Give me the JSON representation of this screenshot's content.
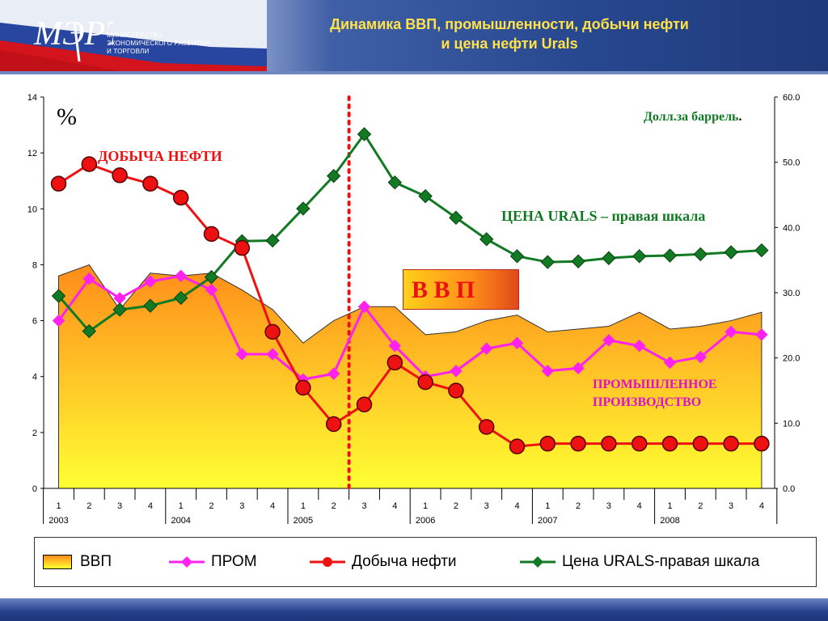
{
  "header": {
    "title_line1": "Динамика ВВП, промышленности, добычи нефти",
    "title_line2": "и цена нефти Urals",
    "logo_text": "МЭРТ",
    "ministry_line1": "МИНИСТЕРСТВО",
    "ministry_line2": "ЭКОНОМИЧЕСКОГО РАЗВИТИЯ",
    "ministry_line3": "И ТОРГОВЛИ"
  },
  "annotations": {
    "percent": "%",
    "right_unit": "Долл.за баррель",
    "right_unit_dot": ".",
    "oil": "ДОБЫЧА НЕФТИ",
    "urals": "ЦЕНА URALS – правая шкала",
    "gdp_box": "В В П",
    "prom_line1": "ПРОМЫШЛЕННОЕ",
    "prom_line2": "ПРОИЗВОДСТВО"
  },
  "legend": {
    "gdp": "ВВП",
    "prom": "ПРОМ",
    "oil": "Добыча нефти",
    "urals": "Цена URALS-правая шкала"
  },
  "colors": {
    "gdp_fill_top": "#ff8c1a",
    "gdp_fill_bottom": "#ffff33",
    "prom": "#ff22ee",
    "oil": "#ee1111",
    "urals": "#117a22",
    "divider": "#ee1111",
    "title": "#ffe14a"
  },
  "chart_data": {
    "type": "line",
    "quarters": [
      "1",
      "2",
      "3",
      "4",
      "1",
      "2",
      "3",
      "4",
      "1",
      "2",
      "3",
      "4",
      "1",
      "2",
      "3",
      "4",
      "1",
      "2",
      "3",
      "4",
      "1",
      "2",
      "3",
      "4"
    ],
    "years": [
      "2003",
      "2004",
      "2005",
      "2006",
      "2007",
      "2008"
    ],
    "ylim_left": [
      0,
      14
    ],
    "yticks_left": [
      "0",
      "2",
      "4",
      "6",
      "8",
      "10",
      "12",
      "14"
    ],
    "ylim_right": [
      0,
      60
    ],
    "yticks_right": [
      "0.0",
      "10.0",
      "20.0",
      "30.0",
      "40.0",
      "50.0",
      "60.0"
    ],
    "divider_after_quarter": "2005 Q2",
    "series": [
      {
        "name": "ВВП",
        "kind": "area",
        "axis": "left",
        "values": [
          7.6,
          8.0,
          6.4,
          7.7,
          7.6,
          7.7,
          7.1,
          6.4,
          5.2,
          6.0,
          6.5,
          6.5,
          5.5,
          5.6,
          6.0,
          6.2,
          5.6,
          5.7,
          5.8,
          6.3,
          5.7,
          5.8,
          6.0,
          6.3
        ]
      },
      {
        "name": "ПРОМ",
        "kind": "line",
        "axis": "left",
        "values": [
          6.0,
          7.5,
          6.8,
          7.4,
          7.6,
          7.1,
          4.8,
          4.8,
          3.9,
          4.1,
          6.5,
          5.1,
          4.0,
          4.2,
          5.0,
          5.2,
          4.2,
          4.3,
          5.3,
          5.1,
          4.5,
          4.7,
          5.6,
          5.5
        ]
      },
      {
        "name": "Добыча нефти",
        "kind": "line",
        "axis": "left",
        "values": [
          10.9,
          11.6,
          11.2,
          10.9,
          10.4,
          9.1,
          8.6,
          5.6,
          3.6,
          2.3,
          3.0,
          4.5,
          3.8,
          3.5,
          2.2,
          1.5,
          1.6,
          1.6,
          1.6,
          1.6,
          1.6,
          1.6,
          1.6,
          1.6
        ]
      },
      {
        "name": "Цена URALS",
        "kind": "line",
        "axis": "right",
        "values": [
          29.5,
          24.1,
          27.4,
          28.0,
          29.2,
          32.4,
          37.9,
          38.0,
          42.9,
          47.9,
          54.3,
          46.9,
          44.8,
          41.5,
          38.2,
          35.6,
          34.7,
          34.8,
          35.3,
          35.6,
          35.7,
          35.9,
          36.2,
          36.5
        ]
      }
    ]
  }
}
